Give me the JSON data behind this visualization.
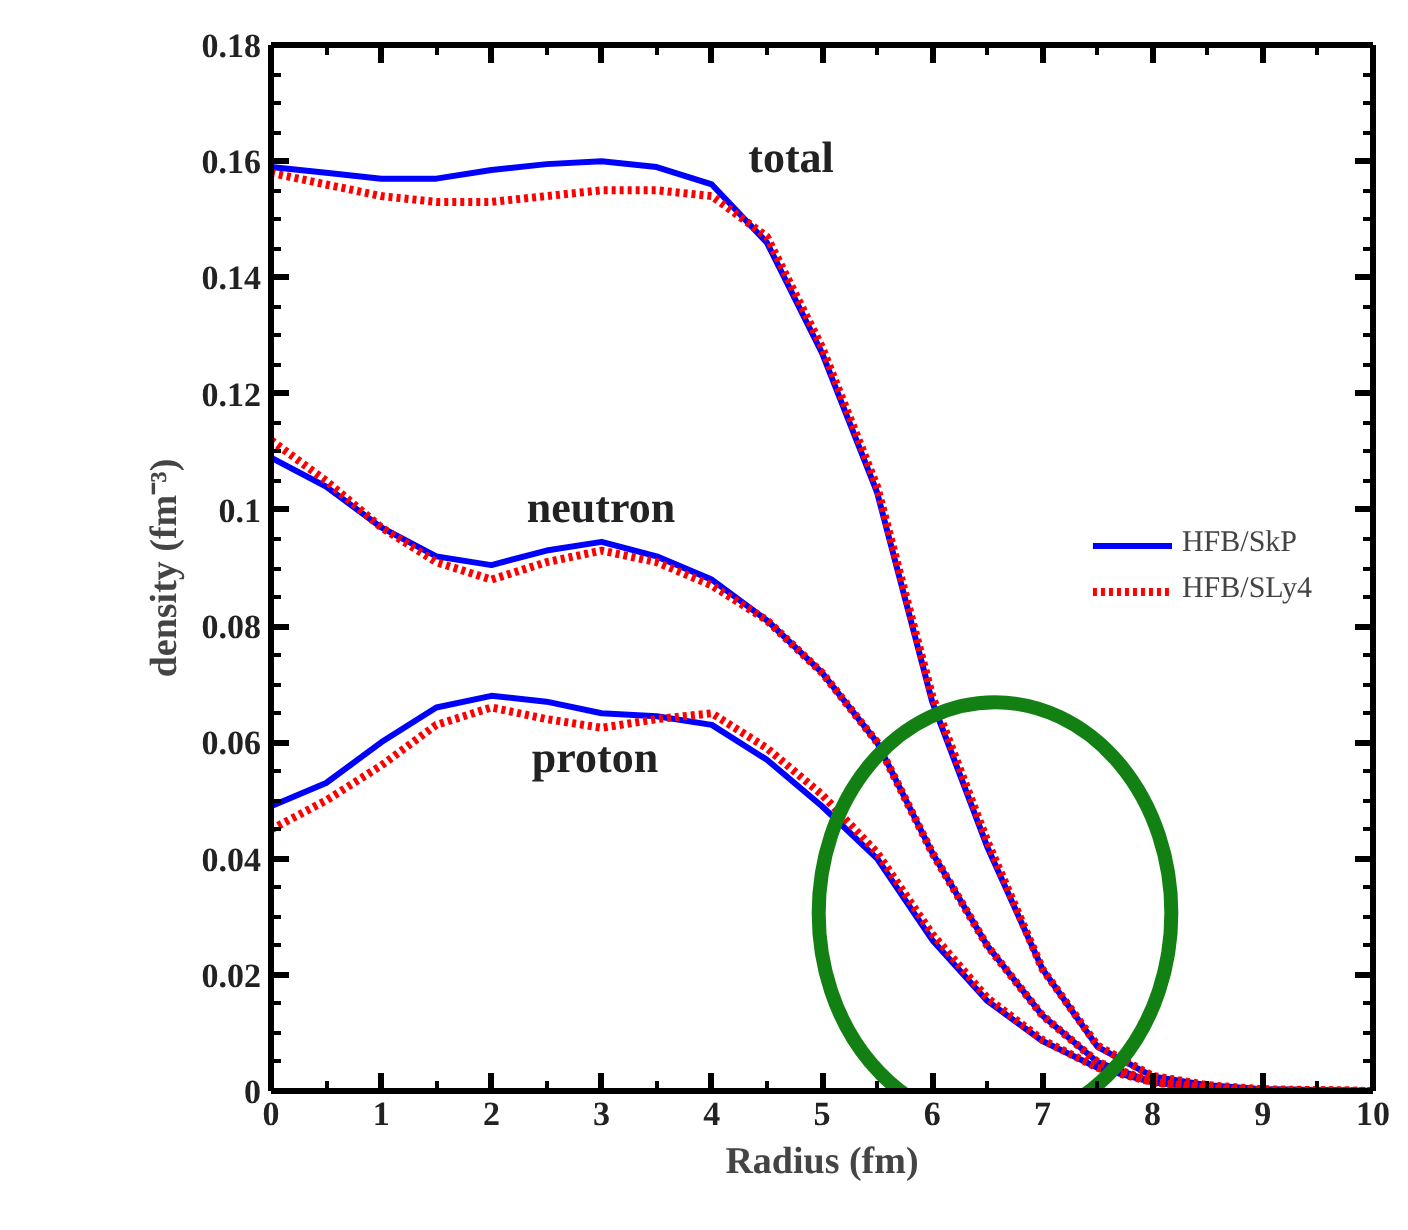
{
  "chart_data": {
    "type": "line",
    "xlabel": "Radius (fm)",
    "ylabel": "density (fm⁻³)",
    "xlim": [
      0,
      10
    ],
    "ylim": [
      0,
      0.18
    ],
    "xticks": [
      0,
      1,
      2,
      3,
      4,
      5,
      6,
      7,
      8,
      9,
      10
    ],
    "yticks": [
      0,
      0.02,
      0.04,
      0.06,
      0.08,
      0.1,
      0.12,
      0.14,
      0.16,
      0.18
    ],
    "grid": false,
    "legend": "right",
    "marker": "none",
    "series": [
      {
        "name": "HFB/SkP",
        "color": "#0000ff",
        "line_style": "solid",
        "x": [
          0,
          0.5,
          1,
          1.5,
          2,
          2.5,
          3,
          3.5,
          4,
          4.5,
          5,
          5.5,
          6,
          6.5,
          7,
          7.5,
          8,
          8.5,
          9,
          10
        ],
        "values": [
          0.159,
          0.158,
          0.157,
          0.157,
          0.1585,
          0.1595,
          0.16,
          0.159,
          0.156,
          0.146,
          0.127,
          0.103,
          0.067,
          0.042,
          0.021,
          0.0076,
          0.0025,
          0.001,
          0.0003,
          0
        ]
      },
      {
        "color": "#0000ff",
        "line_style": "solid",
        "x": [
          0,
          0.5,
          1,
          1.5,
          2,
          2.5,
          3,
          3.5,
          4,
          4.5,
          5,
          5.5,
          6,
          6.5,
          7,
          7.5,
          8,
          8.5,
          9,
          10
        ],
        "values": [
          0.109,
          0.104,
          0.097,
          0.092,
          0.0905,
          0.093,
          0.0945,
          0.092,
          0.088,
          0.081,
          0.072,
          0.06,
          0.041,
          0.025,
          0.013,
          0.005,
          0.0015,
          0.0005,
          0.0002,
          0
        ]
      },
      {
        "color": "#0000ff",
        "line_style": "solid",
        "x": [
          0,
          0.5,
          1,
          1.5,
          2,
          2.5,
          3,
          3.5,
          4,
          4.5,
          5,
          5.5,
          6,
          6.5,
          7,
          7.5,
          8,
          8.5,
          9,
          10
        ],
        "values": [
          0.049,
          0.053,
          0.06,
          0.066,
          0.068,
          0.067,
          0.065,
          0.0645,
          0.063,
          0.057,
          0.049,
          0.04,
          0.026,
          0.0155,
          0.0086,
          0.004,
          0.0015,
          0.0005,
          0.0001,
          0
        ]
      },
      {
        "name": "HFB/SLy4",
        "color": "#ff0000",
        "line_style": "dotted",
        "x": [
          0,
          0.5,
          1,
          1.5,
          2,
          2.5,
          3,
          3.5,
          4,
          4.5,
          5,
          5.5,
          6,
          6.5,
          7,
          7.5,
          8,
          8.5,
          9,
          10
        ],
        "values": [
          0.158,
          0.156,
          0.154,
          0.153,
          0.153,
          0.154,
          0.155,
          0.155,
          0.154,
          0.147,
          0.128,
          0.104,
          0.068,
          0.043,
          0.021,
          0.0078,
          0.0026,
          0.001,
          0.0003,
          0
        ]
      },
      {
        "color": "#ff0000",
        "line_style": "dotted",
        "x": [
          0,
          0.5,
          1,
          1.5,
          2,
          2.5,
          3,
          3.5,
          4,
          4.5,
          5,
          5.5,
          6,
          6.5,
          7,
          7.5,
          8,
          8.5,
          9,
          10
        ],
        "values": [
          0.112,
          0.105,
          0.097,
          0.091,
          0.088,
          0.091,
          0.093,
          0.091,
          0.087,
          0.081,
          0.072,
          0.06,
          0.041,
          0.025,
          0.013,
          0.005,
          0.0015,
          0.0005,
          0.0002,
          0
        ]
      },
      {
        "color": "#ff0000",
        "line_style": "dotted",
        "x": [
          0,
          0.5,
          1,
          1.5,
          2,
          2.5,
          3,
          3.5,
          4,
          4.5,
          5,
          5.5,
          6,
          6.5,
          7,
          7.5,
          8,
          8.5,
          9,
          10
        ],
        "values": [
          0.045,
          0.05,
          0.056,
          0.063,
          0.066,
          0.064,
          0.0625,
          0.064,
          0.065,
          0.059,
          0.051,
          0.041,
          0.027,
          0.016,
          0.0088,
          0.004,
          0.0015,
          0.0005,
          0.0001,
          0
        ]
      }
    ],
    "annotations": [
      "total",
      "neutron",
      "proton"
    ]
  }
}
